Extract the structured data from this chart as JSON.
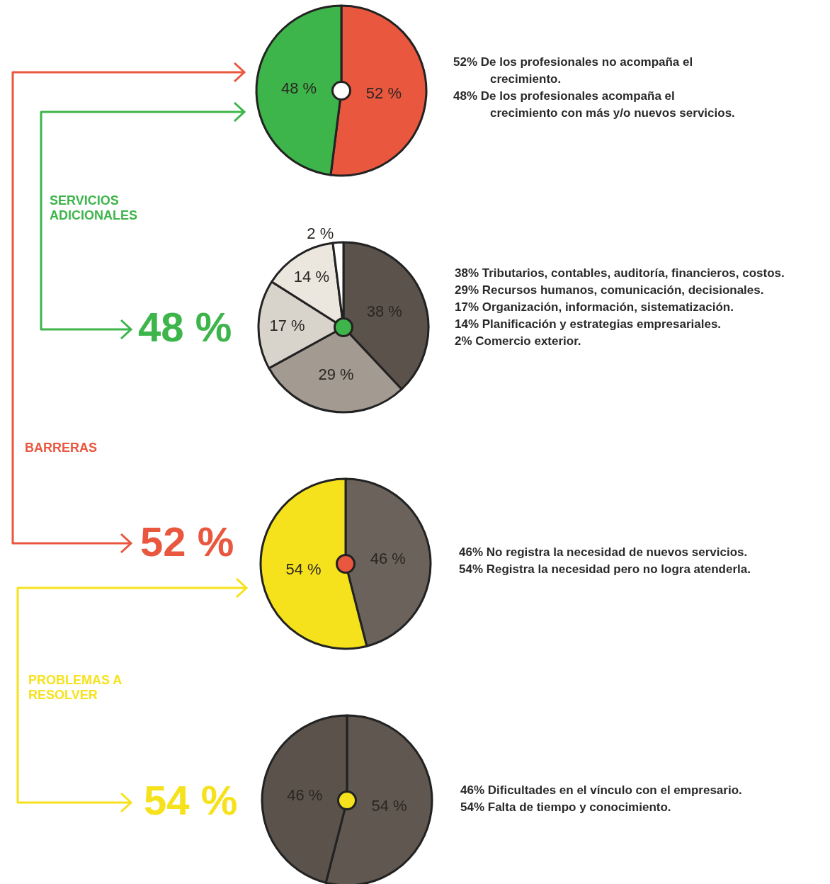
{
  "chart_data": [
    {
      "type": "pie",
      "categories": [
        null,
        null
      ],
      "values": [
        52,
        48
      ],
      "colors": [
        "#e9573f",
        "#3db54a"
      ],
      "value_labels": [
        "52 %",
        "48 %"
      ],
      "annotations": [
        "52% De los profesionales no acompaña el crecimiento.",
        "48% De los profesionales acompaña el crecimiento con más y/o nuevos servicios."
      ]
    },
    {
      "type": "pie",
      "categories": [
        null,
        null,
        null,
        null,
        null
      ],
      "values": [
        38,
        29,
        17,
        14,
        2
      ],
      "colors": [
        "#5b524b",
        "#a39b92",
        "#d9d4cb",
        "#ece7de",
        "#ffffff"
      ],
      "value_labels": [
        "38 %",
        "29 %",
        "17 %",
        "14 %",
        "2 %"
      ],
      "annotations": [
        "SERVICIOS ADICIONALES",
        "48 %",
        "38% Tributarios, contables, auditoría, financieros, costos.",
        "29% Recursos humanos, comunicación, decisionales.",
        "17% Organización, información, sistematización.",
        "14% Planificación y estrategias empresariales.",
        "2%   Comercio exterior."
      ]
    },
    {
      "type": "pie",
      "categories": [
        null,
        null
      ],
      "values": [
        46,
        54
      ],
      "colors": [
        "#6a625b",
        "#f6e21c"
      ],
      "value_labels": [
        "46 %",
        "54 %"
      ],
      "annotations": [
        "BARRERAS",
        "52 %",
        "46% No registra la necesidad de nuevos servicios.",
        "54% Registra la necesidad pero no logra atenderla."
      ]
    },
    {
      "type": "pie",
      "categories": [
        null,
        null
      ],
      "values": [
        54,
        46
      ],
      "colors": [
        "#5f5750",
        "#5a524b"
      ],
      "value_labels": [
        "54 %",
        "46 %"
      ],
      "annotations": [
        "PROBLEMAS A RESOLVER",
        "54 %",
        "46% Dificultades en el vínculo con el empresario.",
        "54% Falta de tiempo y conocimiento."
      ]
    }
  ]
}
